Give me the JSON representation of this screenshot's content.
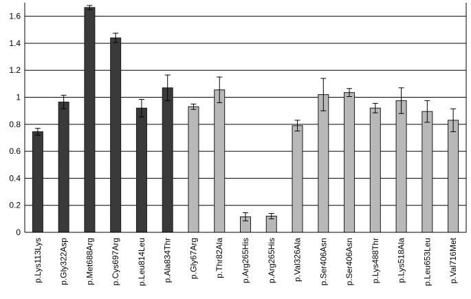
{
  "chart_data": {
    "type": "bar",
    "title": "",
    "xlabel": "",
    "ylabel": "",
    "ylim": [
      0,
      1.7
    ],
    "yticks": [
      "0",
      "0.2",
      "0.4",
      "0.6",
      "0.8",
      "1",
      "1.2",
      "1.4",
      "1.6"
    ],
    "grid": true,
    "legend": "none",
    "colors": {
      "dark": "#3a3a3a",
      "light": "#b8b8b8",
      "grid": "#000000"
    },
    "categories": [
      "p.Lys113Lys",
      "p.Gly322Asp",
      "p.Met688Arg",
      "p.Cys697Arg",
      "p.Leu814Leu",
      "p.Ala834Thr",
      "p.Gly67Arg",
      "p.Thr82Ala",
      "p.Arg265His",
      "p.Arg265His",
      "p.Val326Ala",
      "p.Ser406Asn",
      "p.Ser406Asn",
      "p.Lys488Thr",
      "p.Lys518Ala",
      "p.Leu653Leu",
      "p.Val716Met"
    ],
    "values": [
      0.745,
      0.965,
      1.665,
      1.44,
      0.92,
      1.07,
      0.93,
      1.055,
      0.115,
      0.12,
      0.79,
      1.02,
      1.035,
      0.92,
      0.975,
      0.895,
      0.83
    ],
    "errors": [
      0.025,
      0.05,
      0.015,
      0.035,
      0.065,
      0.095,
      0.02,
      0.095,
      0.03,
      0.02,
      0.04,
      0.12,
      0.03,
      0.035,
      0.095,
      0.08,
      0.085
    ],
    "bar_color_group": [
      "dark",
      "dark",
      "dark",
      "dark",
      "dark",
      "dark",
      "light",
      "light",
      "light",
      "light",
      "light",
      "light",
      "light",
      "light",
      "light",
      "light",
      "light"
    ]
  }
}
